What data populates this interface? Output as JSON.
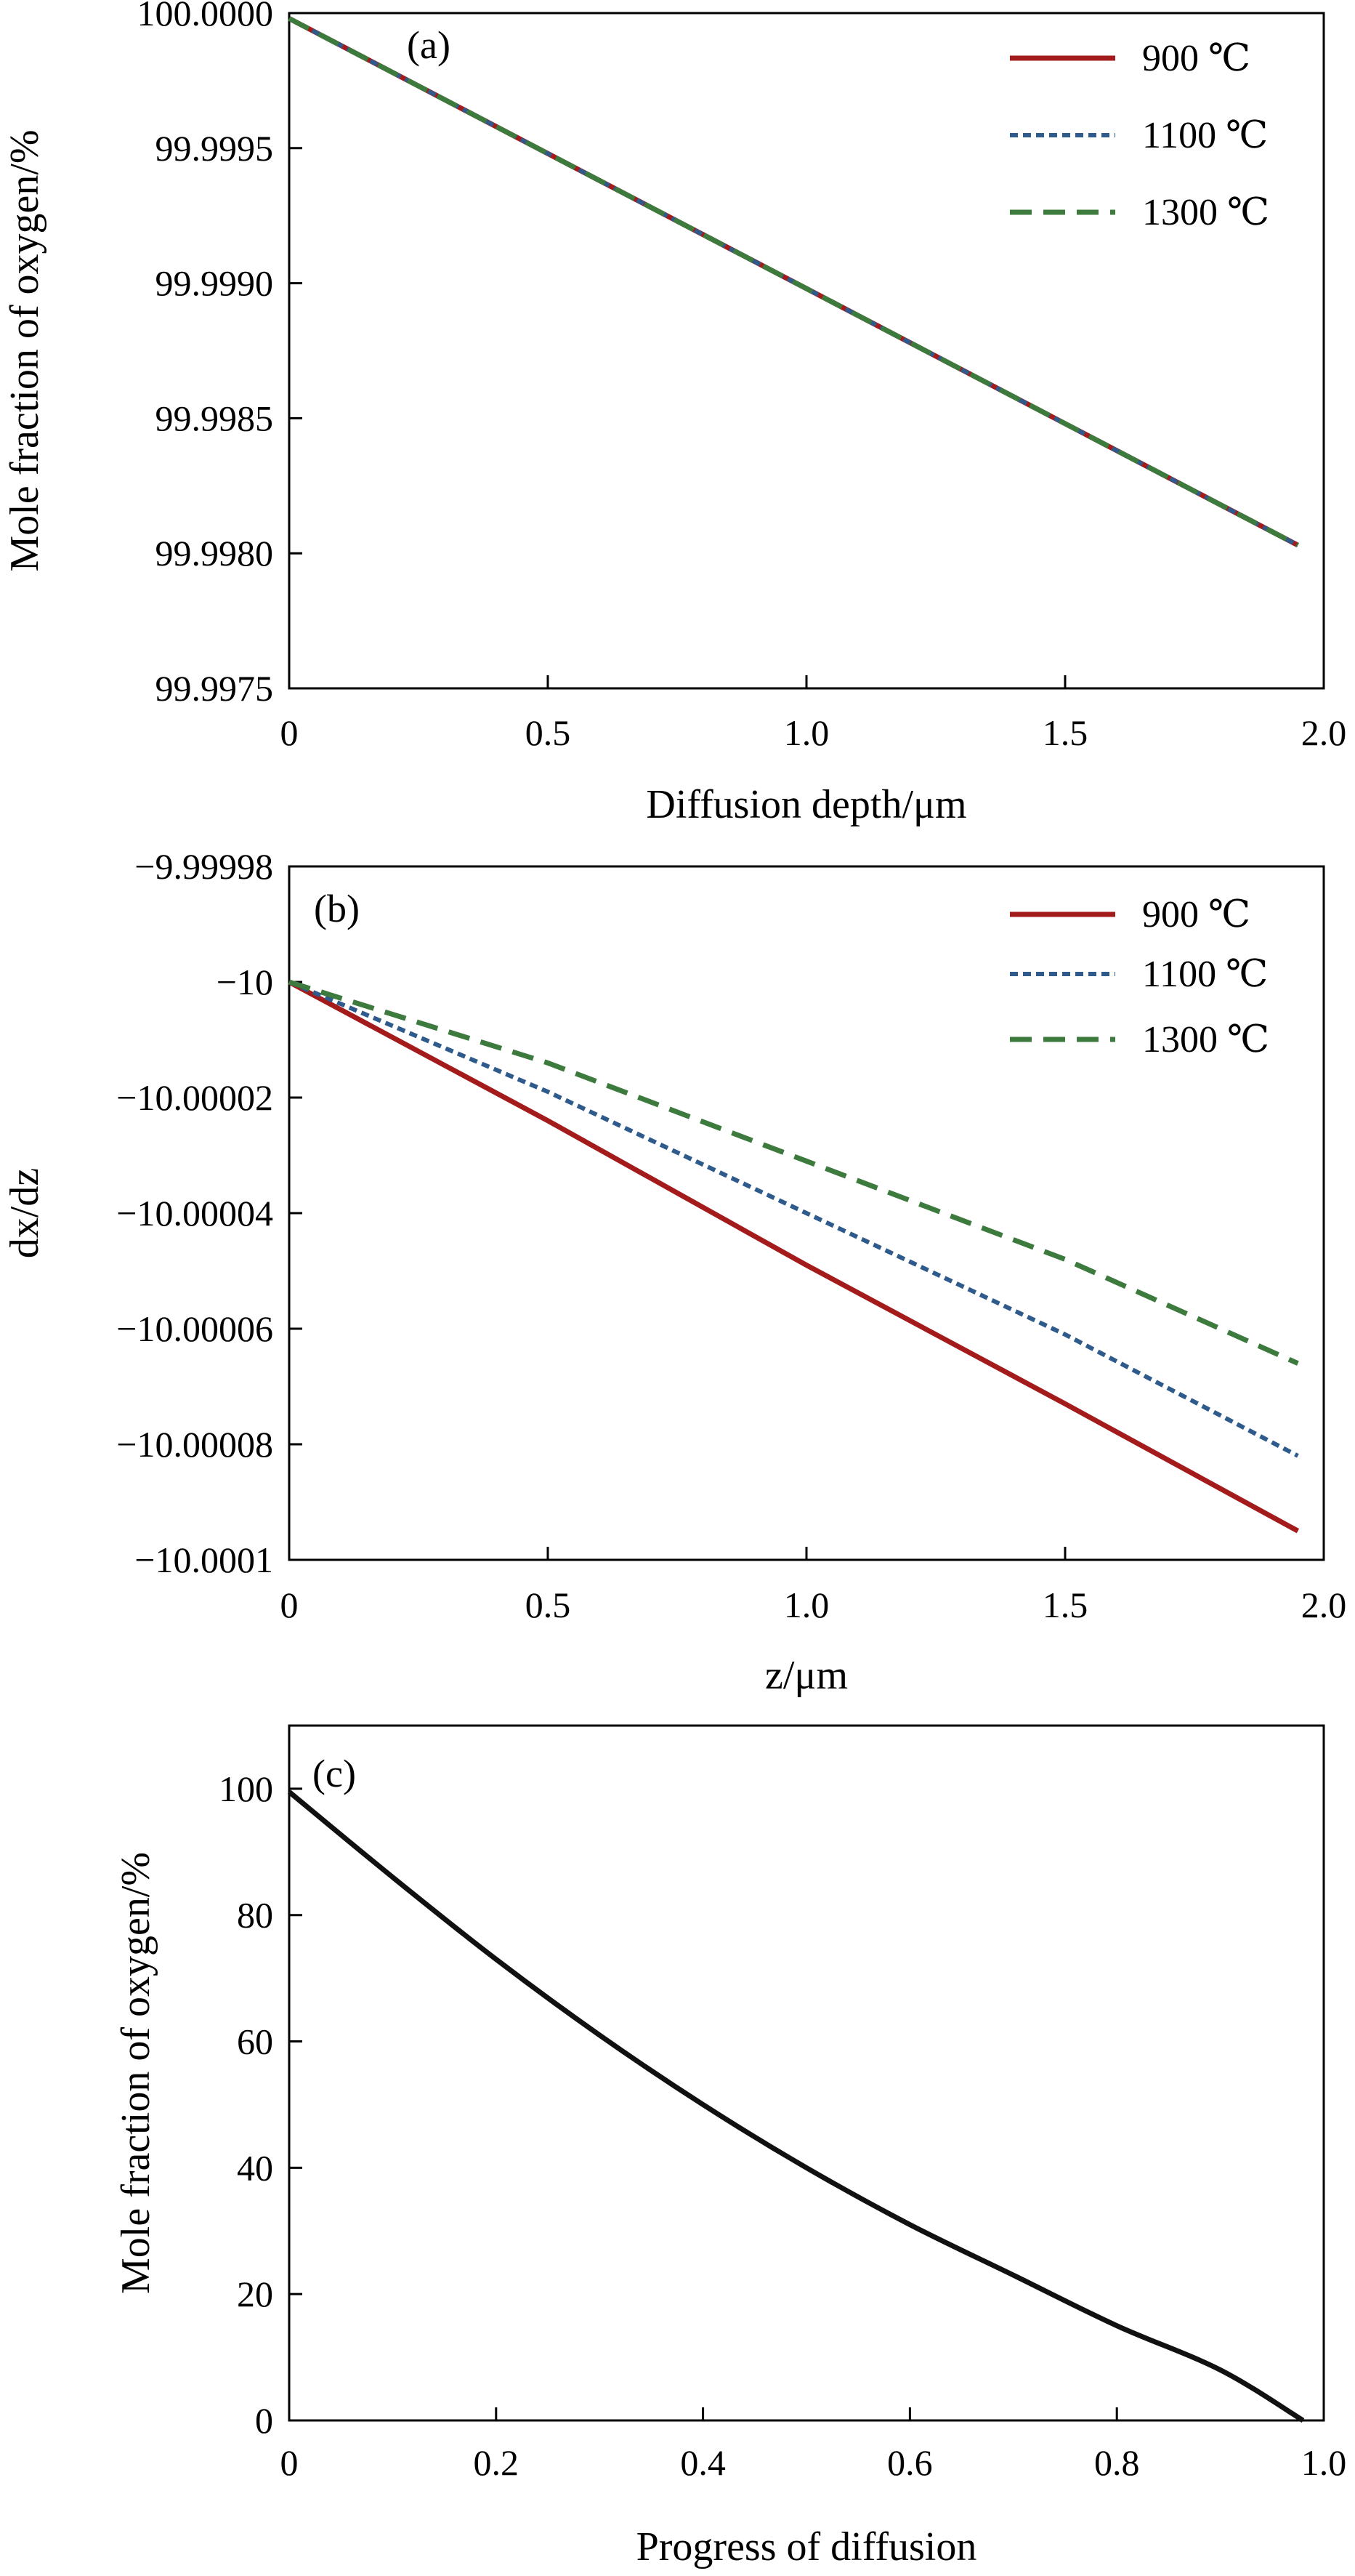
{
  "colors": {
    "900": "#a31b1b",
    "1100": "#2e5a8c",
    "1300": "#3d7a3d",
    "axis": "#000000",
    "curve_c": "#111111"
  },
  "chart_data": [
    {
      "panel": "(a)",
      "type": "line",
      "title": "",
      "xlabel": "Diffusion depth/μm",
      "ylabel": "Mole fraction of oxygen/%",
      "xlim": [
        0,
        2.0
      ],
      "ylim": [
        99.9975,
        100.0
      ],
      "xticks": [
        "0",
        "0.5",
        "1.0",
        "1.5",
        "2.0"
      ],
      "xtick_values": [
        0,
        0.5,
        1.0,
        1.5,
        2.0
      ],
      "yticks": [
        "99.9975",
        "99.9980",
        "99.9985",
        "99.9990",
        "99.9995",
        "100.0000"
      ],
      "ytick_values": [
        99.9975,
        99.998,
        99.9985,
        99.999,
        99.9995,
        100.0
      ],
      "legend_position": "top-right",
      "series": [
        {
          "name": "900 ℃",
          "style": "solid",
          "x": [
            0,
            0.5,
            1.0,
            1.5,
            1.95
          ],
          "y": [
            99.99998,
            99.99948,
            99.99898,
            99.99848,
            99.99803
          ]
        },
        {
          "name": "1100 ℃",
          "style": "dotted",
          "x": [
            0,
            0.5,
            1.0,
            1.5,
            1.95
          ],
          "y": [
            99.99998,
            99.99948,
            99.99898,
            99.99848,
            99.99803
          ]
        },
        {
          "name": "1300 ℃",
          "style": "dashed",
          "x": [
            0,
            0.5,
            1.0,
            1.5,
            1.95
          ],
          "y": [
            99.99998,
            99.99948,
            99.99898,
            99.99848,
            99.99803
          ]
        }
      ]
    },
    {
      "panel": "(b)",
      "type": "line",
      "title": "",
      "xlabel": "z/μm",
      "ylabel": "dx/dz",
      "xlim": [
        0,
        2.0
      ],
      "ylim": [
        -10.0001,
        -9.99998
      ],
      "xticks": [
        "0",
        "0.5",
        "1.0",
        "1.5",
        "2.0"
      ],
      "xtick_values": [
        0,
        0.5,
        1.0,
        1.5,
        2.0
      ],
      "yticks": [
        "−10.0001",
        "−10.00008",
        "−10.00006",
        "−10.00004",
        "−10.00002",
        "−10",
        "−9.99998"
      ],
      "ytick_values": [
        -10.0001,
        -10.00008,
        -10.00006,
        -10.00004,
        -10.00002,
        -10.0,
        -9.99998
      ],
      "legend_position": "top-right",
      "series": [
        {
          "name": "900 ℃",
          "style": "solid",
          "x": [
            0,
            0.5,
            1.0,
            1.5,
            1.95
          ],
          "y": [
            -10.0,
            -10.000024,
            -10.000049,
            -10.000073,
            -10.000095
          ]
        },
        {
          "name": "1100 ℃",
          "style": "dotted",
          "x": [
            0,
            0.5,
            1.0,
            1.5,
            1.95
          ],
          "y": [
            -10.0,
            -10.000019,
            -10.00004,
            -10.000061,
            -10.000082
          ]
        },
        {
          "name": "1300 ℃",
          "style": "dashed",
          "x": [
            0,
            0.5,
            1.0,
            1.5,
            1.95
          ],
          "y": [
            -10.0,
            -10.000014,
            -10.000031,
            -10.000048,
            -10.000066
          ]
        }
      ]
    },
    {
      "panel": "(c)",
      "type": "line",
      "title": "",
      "xlabel": "Progress of diffusion",
      "ylabel": "Mole fraction of oxygen/%",
      "xlim": [
        0,
        1.0
      ],
      "ylim": [
        0,
        110
      ],
      "xticks": [
        "0",
        "0.2",
        "0.4",
        "0.6",
        "0.8",
        "1.0"
      ],
      "xtick_values": [
        0,
        0.2,
        0.4,
        0.6,
        0.8,
        1.0
      ],
      "yticks": [
        "0",
        "20",
        "40",
        "60",
        "80",
        "100"
      ],
      "ytick_values": [
        0,
        20,
        40,
        60,
        80,
        100
      ],
      "series": [
        {
          "style": "solid",
          "x": [
            0,
            0.1,
            0.2,
            0.3,
            0.4,
            0.5,
            0.6,
            0.7,
            0.8,
            0.9,
            0.98
          ],
          "y": [
            99.5,
            86,
            73,
            61,
            50,
            40,
            31,
            23,
            15,
            8,
            0
          ]
        }
      ]
    }
  ]
}
